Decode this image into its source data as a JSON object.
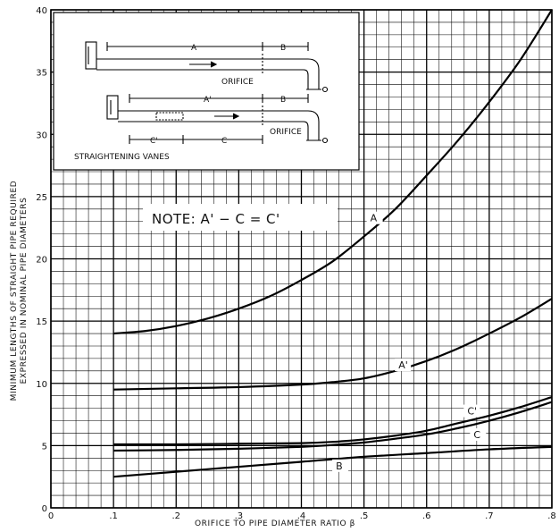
{
  "chart_data": {
    "type": "line",
    "xlabel": "ORIFICE TO PIPE DIAMETER RATIO β",
    "ylabel_line1": "MINIMUM LENGTHS OF STRAIGHT PIPE REQUIRED",
    "ylabel_line2": "EXPRESSED IN NOMINAL PIPE DIAMETERS",
    "xlim": [
      0,
      0.8
    ],
    "ylim": [
      0,
      40
    ],
    "x_ticks": [
      {
        "v": 0,
        "label": "0"
      },
      {
        "v": 0.1,
        "label": ".1"
      },
      {
        "v": 0.2,
        "label": ".2"
      },
      {
        "v": 0.3,
        "label": ".3"
      },
      {
        "v": 0.4,
        "label": ".4"
      },
      {
        "v": 0.5,
        "label": ".5"
      },
      {
        "v": 0.6,
        "label": ".6"
      },
      {
        "v": 0.7,
        "label": ".7"
      },
      {
        "v": 0.8,
        "label": ".8"
      }
    ],
    "y_ticks": [
      {
        "v": 0,
        "label": "0"
      },
      {
        "v": 5,
        "label": "5"
      },
      {
        "v": 10,
        "label": "10"
      },
      {
        "v": 15,
        "label": "15"
      },
      {
        "v": 20,
        "label": "20"
      },
      {
        "v": 25,
        "label": "25"
      },
      {
        "v": 30,
        "label": "30"
      },
      {
        "v": 35,
        "label": "35"
      },
      {
        "v": 40,
        "label": "40"
      }
    ],
    "grid": true,
    "series": [
      {
        "name": "A",
        "label_at": [
          0.51,
          23.0
        ],
        "x": [
          0.1,
          0.15,
          0.2,
          0.25,
          0.3,
          0.35,
          0.4,
          0.45,
          0.5,
          0.55,
          0.6,
          0.65,
          0.7,
          0.75,
          0.8
        ],
        "y": [
          14.0,
          14.2,
          14.6,
          15.2,
          16.0,
          17.0,
          18.3,
          19.8,
          21.8,
          24.0,
          26.7,
          29.5,
          32.6,
          36.0,
          40.0
        ]
      },
      {
        "name": "A'",
        "label_at": [
          0.555,
          11.2
        ],
        "x": [
          0.1,
          0.2,
          0.3,
          0.4,
          0.45,
          0.5,
          0.55,
          0.6,
          0.65,
          0.7,
          0.75,
          0.8
        ],
        "y": [
          9.5,
          9.6,
          9.7,
          9.9,
          10.1,
          10.4,
          11.0,
          11.8,
          12.8,
          14.0,
          15.3,
          16.8
        ]
      },
      {
        "name": "C'",
        "label_at": [
          0.665,
          7.5
        ],
        "x": [
          0.1,
          0.2,
          0.3,
          0.4,
          0.45,
          0.5,
          0.55,
          0.6,
          0.65,
          0.7,
          0.75,
          0.8
        ],
        "y": [
          5.1,
          5.1,
          5.15,
          5.2,
          5.3,
          5.5,
          5.8,
          6.2,
          6.8,
          7.4,
          8.1,
          8.9
        ]
      },
      {
        "name": "C",
        "label_at": [
          0.675,
          5.6
        ],
        "x": [
          0.1,
          0.2,
          0.3,
          0.4,
          0.45,
          0.5,
          0.55,
          0.6,
          0.65,
          0.7,
          0.75,
          0.8
        ],
        "y": [
          4.6,
          4.65,
          4.75,
          4.9,
          5.05,
          5.25,
          5.55,
          5.9,
          6.4,
          7.0,
          7.7,
          8.5
        ]
      },
      {
        "name": "B",
        "label_at": [
          0.455,
          3.1
        ],
        "x": [
          0.1,
          0.2,
          0.3,
          0.4,
          0.5,
          0.6,
          0.7,
          0.8
        ],
        "y": [
          2.5,
          2.9,
          3.3,
          3.7,
          4.1,
          4.4,
          4.7,
          4.9
        ]
      }
    ],
    "annotations": {
      "note": "NOTE:  A' − C = C'",
      "inset_labels": {
        "a": "A",
        "b": "B",
        "a_prime": "A'",
        "b2": "B",
        "c_prime": "C'",
        "c": "C",
        "orifice_1": "ORIFICE",
        "orifice_2": "ORIFICE",
        "straightening_vanes": "STRAIGHTENING VANES"
      }
    }
  }
}
